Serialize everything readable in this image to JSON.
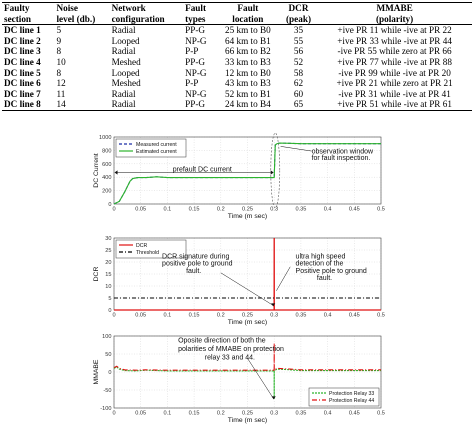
{
  "table": {
    "headers": [
      [
        "Faulty",
        "section"
      ],
      [
        "Noise",
        "level (db.)"
      ],
      [
        "Network",
        "configuration"
      ],
      [
        "Fault",
        "types"
      ],
      [
        "Fault",
        "location"
      ],
      [
        "DCR",
        "(peak)"
      ],
      [
        "MMABE",
        "(polarity)"
      ]
    ],
    "rows": [
      {
        "section": "DC line 1",
        "noise": "5",
        "config": "Radial",
        "type": "PP-G",
        "location": "25 km to B0",
        "dcr": "35",
        "polarity": "+ive PR 11 while -ive at PR 22"
      },
      {
        "section": "DC line 2",
        "noise": "9",
        "config": "Looped",
        "type": "NP-G",
        "location": "64 km to B1",
        "dcr": "55",
        "polarity": "+ive PR 33 while -ive at PR 44"
      },
      {
        "section": "DC line 3",
        "noise": "8",
        "config": "Radial",
        "type": "P-P",
        "location": "66 km to B2",
        "dcr": "56",
        "polarity": "-ive PR 55 while zero at PR 66"
      },
      {
        "section": "DC line 4",
        "noise": "10",
        "config": "Meshed",
        "type": "PP-G",
        "location": "33 km to B3",
        "dcr": "52",
        "polarity": "+ive PR 77 while -ive at PR 88"
      },
      {
        "section": "DC line 5",
        "noise": "8",
        "config": "Looped",
        "type": "NP-G",
        "location": "12 km to B0",
        "dcr": "58",
        "polarity": "-ive PR 99 while -ive at PR 20"
      },
      {
        "section": "DC line 6",
        "noise": "12",
        "config": "Meshed",
        "type": "P-P",
        "location": "43 km to B3",
        "dcr": "62",
        "polarity": "+ive PR 21 while zero at PR 21"
      },
      {
        "section": "DC line 7",
        "noise": "11",
        "config": "Radial",
        "type": "NP-G",
        "location": "52 km to B1",
        "dcr": "60",
        "polarity": "-ive PR 31 while -ive at PR 41"
      },
      {
        "section": "DC line 8",
        "noise": "14",
        "config": "Radial",
        "type": "PP-G",
        "location": "24 km to B4",
        "dcr": "65",
        "polarity": "+ive PR 51 while -ive at PR 61"
      }
    ]
  },
  "chart_data": [
    {
      "type": "line",
      "ylabel": "DC Current",
      "xlabel": "Time (m sec)",
      "xlim": [
        0,
        0.5
      ],
      "ylim": [
        0,
        1000
      ],
      "xticks": [
        "0",
        "0.05",
        "0.1",
        "0.15",
        "0.2",
        "0.25",
        "0.3",
        "0.35",
        "0.4",
        "0.45",
        "0.5"
      ],
      "yticks": [
        "0",
        "200",
        "400",
        "600",
        "800",
        "1000"
      ],
      "grid": true,
      "legend": "top-left",
      "series": [
        {
          "name": "Measured current",
          "color": "#1c2fa8",
          "dash": "3,2",
          "x": [
            0,
            0.01,
            0.02,
            0.03,
            0.035,
            0.045,
            0.06,
            0.08,
            0.1,
            0.15,
            0.2,
            0.25,
            0.295,
            0.3,
            0.302,
            0.305,
            0.31,
            0.33,
            0.35,
            0.4,
            0.45,
            0.5
          ],
          "y": [
            0,
            40,
            180,
            340,
            380,
            395,
            395,
            405,
            395,
            395,
            395,
            395,
            395,
            395,
            880,
            900,
            910,
            905,
            900,
            900,
            900,
            900
          ]
        },
        {
          "name": "Estimated current",
          "color": "#2db52d",
          "dash": "",
          "x": [
            0,
            0.01,
            0.02,
            0.03,
            0.035,
            0.045,
            0.06,
            0.08,
            0.1,
            0.15,
            0.2,
            0.25,
            0.295,
            0.3,
            0.302,
            0.305,
            0.31,
            0.33,
            0.35,
            0.4,
            0.45,
            0.5
          ],
          "y": [
            0,
            40,
            180,
            340,
            380,
            395,
            395,
            405,
            395,
            395,
            395,
            395,
            395,
            395,
            880,
            900,
            910,
            905,
            900,
            900,
            900,
            900
          ]
        }
      ],
      "annotations": [
        {
          "text": "prefault DC current",
          "at": [
            0.11,
            520
          ]
        },
        {
          "text": "observation window",
          "at": [
            0.37,
            790
          ]
        },
        {
          "text": "for fault inspection.",
          "at": [
            0.37,
            690
          ]
        }
      ]
    },
    {
      "type": "line",
      "ylabel": "DCR",
      "xlabel": "Time (m sec)",
      "xlim": [
        0,
        0.5
      ],
      "ylim": [
        0,
        30
      ],
      "xticks": [
        "0",
        "0.05",
        "0.1",
        "0.15",
        "0.2",
        "0.25",
        "0.3",
        "0.35",
        "0.4",
        "0.45",
        "0.5"
      ],
      "yticks": [
        "0",
        "5",
        "10",
        "15",
        "20",
        "25",
        "30"
      ],
      "grid": true,
      "legend": "top-left",
      "series": [
        {
          "name": "DCR",
          "color": "#e01010",
          "dash": "",
          "x": [
            0,
            0.2999,
            0.3,
            0.3001,
            0.5
          ],
          "y": [
            0,
            0,
            30,
            0,
            0
          ]
        },
        {
          "name": "Threshold",
          "color": "#000000",
          "dash": "4,2,1,2",
          "x": [
            0,
            0.5
          ],
          "y": [
            5,
            5
          ]
        }
      ],
      "annotations": [
        {
          "text": "DCR signature during",
          "at": [
            0.09,
            22.5
          ]
        },
        {
          "text": "positive pole to ground",
          "at": [
            0.09,
            19.5
          ]
        },
        {
          "text": "fault.",
          "at": [
            0.135,
            16.5
          ]
        },
        {
          "text": "ultra high speed",
          "at": [
            0.34,
            22.5
          ]
        },
        {
          "text": "detection of the",
          "at": [
            0.34,
            19.5
          ]
        },
        {
          "text": "Positive pole to ground",
          "at": [
            0.34,
            16.5
          ]
        },
        {
          "text": "fault.",
          "at": [
            0.38,
            13.5
          ]
        }
      ]
    },
    {
      "type": "line",
      "ylabel": "MMABE",
      "xlabel": "Time (m sec)",
      "xlim": [
        0,
        0.5
      ],
      "ylim": [
        -100,
        100
      ],
      "xticks": [
        "0",
        "0.05",
        "0.1",
        "0.15",
        "0.2",
        "0.25",
        "0.3",
        "0.35",
        "0.4",
        "0.45",
        "0.5"
      ],
      "yticks": [
        "-100",
        "-50",
        "0",
        "50",
        "100"
      ],
      "grid": true,
      "legend": "bottom-right",
      "series": [
        {
          "name": "Protection Relay 33",
          "color": "#2db52d",
          "dash": "2,1",
          "x": [
            0,
            0.005,
            0.01,
            0.02,
            0.04,
            0.06,
            0.1,
            0.15,
            0.2,
            0.25,
            0.29,
            0.2999,
            0.3,
            0.3001,
            0.305,
            0.32,
            0.35,
            0.4,
            0.45,
            0.5
          ],
          "y": [
            10,
            14,
            8,
            4,
            3,
            5,
            3,
            3,
            3,
            3,
            3,
            3,
            -75,
            3,
            8,
            7,
            4,
            4,
            4,
            4
          ]
        },
        {
          "name": "Protection Relay 44",
          "color": "#e01010",
          "dash": "5,2,1,2",
          "x": [
            0,
            0.005,
            0.01,
            0.02,
            0.04,
            0.06,
            0.1,
            0.15,
            0.2,
            0.25,
            0.29,
            0.2999,
            0.3,
            0.3001,
            0.305,
            0.32,
            0.35,
            0.4,
            0.45,
            0.5
          ],
          "y": [
            12,
            16,
            10,
            6,
            5,
            6,
            5,
            5,
            5,
            5,
            5,
            5,
            80,
            5,
            10,
            9,
            6,
            6,
            6,
            6
          ]
        }
      ],
      "annotations": [
        {
          "text": "Oposite direction of both the",
          "at": [
            0.12,
            88
          ]
        },
        {
          "text": "polarities of MMABE on protection",
          "at": [
            0.12,
            65
          ]
        },
        {
          "text": "relay 33 and 44.",
          "at": [
            0.17,
            42
          ]
        }
      ]
    }
  ]
}
